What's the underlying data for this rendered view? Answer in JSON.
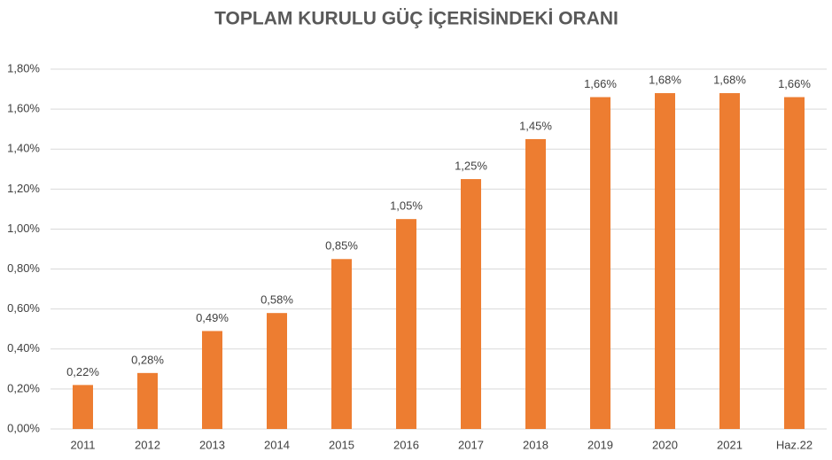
{
  "chart_data": {
    "type": "bar",
    "title": "TOPLAM KURULU GÜÇ İÇERİSİNDEKİ ORANI",
    "categories": [
      "2011",
      "2012",
      "2013",
      "2014",
      "2015",
      "2016",
      "2017",
      "2018",
      "2019",
      "2020",
      "2021",
      "Haz.22"
    ],
    "values": [
      0.22,
      0.28,
      0.49,
      0.58,
      0.85,
      1.05,
      1.25,
      1.45,
      1.66,
      1.68,
      1.68,
      1.66
    ],
    "value_labels": [
      "0,22%",
      "0,28%",
      "0,49%",
      "0,58%",
      "0,85%",
      "1,05%",
      "1,25%",
      "1,45%",
      "1,66%",
      "1,68%",
      "1,68%",
      "1,66%"
    ],
    "color": "#ed7d31",
    "ylim": [
      0,
      1.8
    ],
    "yticks": [
      {
        "value": 0,
        "label": "0,00%"
      },
      {
        "value": 0.2,
        "label": "0,20%"
      },
      {
        "value": 0.4,
        "label": "0,40%"
      },
      {
        "value": 0.6,
        "label": "0,60%"
      },
      {
        "value": 0.8,
        "label": "0,80%"
      },
      {
        "value": 1.0,
        "label": "1,00%"
      },
      {
        "value": 1.2,
        "label": "1,20%"
      },
      {
        "value": 1.4,
        "label": "1,40%"
      },
      {
        "value": 1.6,
        "label": "1,60%"
      },
      {
        "value": 1.8,
        "label": "1,80%"
      }
    ],
    "grid": true
  }
}
